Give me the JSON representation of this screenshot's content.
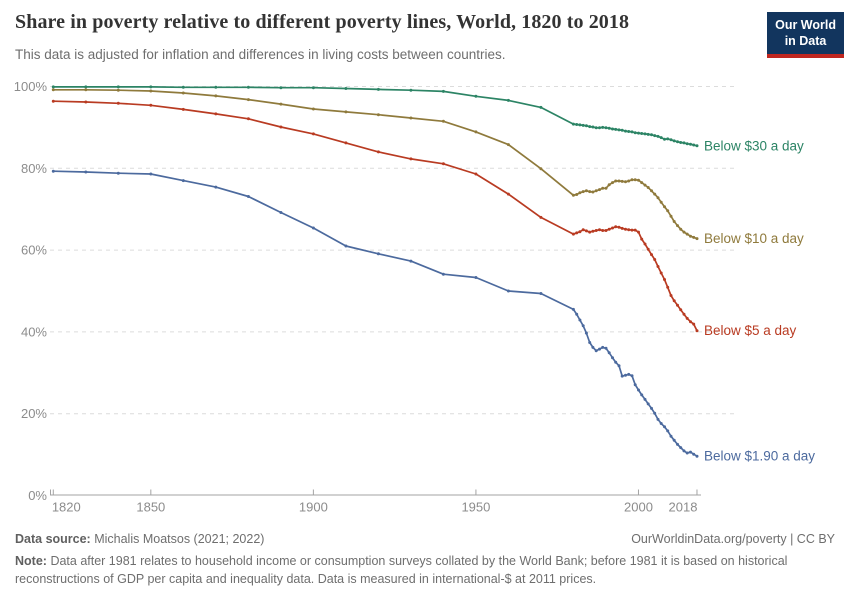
{
  "logo": {
    "line1": "Our World",
    "line2": "in Data",
    "bg_color": "#12355E",
    "accent_color": "#C0261F"
  },
  "chart_data": {
    "type": "line",
    "title": "Share in poverty relative to different poverty lines, World, 1820 to 2018",
    "subtitle": "This data is adjusted for inflation and differences in living costs between countries.",
    "xlabel": "",
    "ylabel": "",
    "xlim": [
      1820,
      2018
    ],
    "ylim": [
      0,
      100
    ],
    "x_ticks": [
      1820,
      1850,
      1900,
      1950,
      2000,
      2018
    ],
    "y_ticks": [
      0,
      20,
      40,
      60,
      80,
      100
    ],
    "y_tick_suffix": "%",
    "grid": true,
    "legend_position": "end-of-line-labels",
    "axis_color": "#a3a3a3",
    "grid_color": "#dcdcdc",
    "tick_label_color": "#8c8c8c",
    "series": [
      {
        "id": "below-30-a-day",
        "label": "Below $30 a day",
        "color": "#2C8465",
        "points": [
          [
            1820,
            99.9
          ],
          [
            1830,
            99.9
          ],
          [
            1840,
            99.9
          ],
          [
            1850,
            99.9
          ],
          [
            1860,
            99.8
          ],
          [
            1870,
            99.8
          ],
          [
            1880,
            99.8
          ],
          [
            1890,
            99.7
          ],
          [
            1900,
            99.7
          ],
          [
            1910,
            99.5
          ],
          [
            1920,
            99.3
          ],
          [
            1930,
            99.1
          ],
          [
            1940,
            98.8
          ],
          [
            1950,
            97.6
          ],
          [
            1960,
            96.6
          ],
          [
            1970,
            94.9
          ],
          [
            1980,
            90.8
          ],
          [
            1981,
            90.7
          ],
          [
            1982,
            90.6
          ],
          [
            1983,
            90.5
          ],
          [
            1984,
            90.4
          ],
          [
            1985,
            90.2
          ],
          [
            1986,
            90.1
          ],
          [
            1987,
            89.9
          ],
          [
            1988,
            89.9
          ],
          [
            1989,
            90.0
          ],
          [
            1990,
            89.9
          ],
          [
            1991,
            89.8
          ],
          [
            1992,
            89.6
          ],
          [
            1993,
            89.5
          ],
          [
            1994,
            89.4
          ],
          [
            1995,
            89.3
          ],
          [
            1996,
            89.1
          ],
          [
            1997,
            89.0
          ],
          [
            1998,
            88.9
          ],
          [
            1999,
            88.7
          ],
          [
            2000,
            88.6
          ],
          [
            2001,
            88.5
          ],
          [
            2002,
            88.4
          ],
          [
            2003,
            88.3
          ],
          [
            2004,
            88.2
          ],
          [
            2005,
            88.0
          ],
          [
            2006,
            87.8
          ],
          [
            2007,
            87.5
          ],
          [
            2008,
            87.1
          ],
          [
            2009,
            87.2
          ],
          [
            2010,
            87.0
          ],
          [
            2011,
            86.7
          ],
          [
            2012,
            86.5
          ],
          [
            2013,
            86.3
          ],
          [
            2014,
            86.2
          ],
          [
            2015,
            86.0
          ],
          [
            2016,
            85.9
          ],
          [
            2017,
            85.7
          ],
          [
            2018,
            85.5
          ]
        ]
      },
      {
        "id": "below-10-a-day",
        "label": "Below $10 a day",
        "color": "#8F7A3C",
        "points": [
          [
            1820,
            99.2
          ],
          [
            1830,
            99.2
          ],
          [
            1840,
            99.1
          ],
          [
            1850,
            98.9
          ],
          [
            1860,
            98.4
          ],
          [
            1870,
            97.7
          ],
          [
            1880,
            96.8
          ],
          [
            1890,
            95.7
          ],
          [
            1900,
            94.5
          ],
          [
            1910,
            93.8
          ],
          [
            1920,
            93.1
          ],
          [
            1930,
            92.3
          ],
          [
            1940,
            91.5
          ],
          [
            1950,
            88.9
          ],
          [
            1960,
            85.8
          ],
          [
            1970,
            79.9
          ],
          [
            1980,
            73.4
          ],
          [
            1981,
            73.6
          ],
          [
            1982,
            74.0
          ],
          [
            1983,
            74.3
          ],
          [
            1984,
            74.5
          ],
          [
            1985,
            74.3
          ],
          [
            1986,
            74.2
          ],
          [
            1987,
            74.5
          ],
          [
            1988,
            74.8
          ],
          [
            1989,
            75.1
          ],
          [
            1990,
            75.1
          ],
          [
            1991,
            76.0
          ],
          [
            1992,
            76.5
          ],
          [
            1993,
            76.9
          ],
          [
            1994,
            76.9
          ],
          [
            1995,
            76.8
          ],
          [
            1996,
            76.7
          ],
          [
            1997,
            76.9
          ],
          [
            1998,
            77.2
          ],
          [
            1999,
            77.2
          ],
          [
            2000,
            77.1
          ],
          [
            2001,
            76.5
          ],
          [
            2002,
            75.9
          ],
          [
            2003,
            75.3
          ],
          [
            2004,
            74.5
          ],
          [
            2005,
            73.7
          ],
          [
            2006,
            72.8
          ],
          [
            2007,
            71.7
          ],
          [
            2008,
            70.6
          ],
          [
            2009,
            69.6
          ],
          [
            2010,
            68.3
          ],
          [
            2011,
            67.0
          ],
          [
            2012,
            66.0
          ],
          [
            2013,
            65.1
          ],
          [
            2014,
            64.4
          ],
          [
            2015,
            63.9
          ],
          [
            2016,
            63.4
          ],
          [
            2017,
            63.1
          ],
          [
            2018,
            62.8
          ]
        ]
      },
      {
        "id": "below-5-a-day",
        "label": "Below $5 a day",
        "color": "#B93B22",
        "points": [
          [
            1820,
            96.4
          ],
          [
            1830,
            96.2
          ],
          [
            1840,
            95.9
          ],
          [
            1850,
            95.4
          ],
          [
            1860,
            94.4
          ],
          [
            1870,
            93.3
          ],
          [
            1880,
            92.1
          ],
          [
            1890,
            90.1
          ],
          [
            1900,
            88.4
          ],
          [
            1910,
            86.2
          ],
          [
            1920,
            84.0
          ],
          [
            1930,
            82.3
          ],
          [
            1940,
            81.1
          ],
          [
            1950,
            78.6
          ],
          [
            1960,
            73.7
          ],
          [
            1970,
            68.0
          ],
          [
            1980,
            63.9
          ],
          [
            1981,
            64.2
          ],
          [
            1982,
            64.5
          ],
          [
            1983,
            65.0
          ],
          [
            1984,
            64.7
          ],
          [
            1985,
            64.4
          ],
          [
            1986,
            64.6
          ],
          [
            1987,
            64.8
          ],
          [
            1988,
            65.0
          ],
          [
            1989,
            64.8
          ],
          [
            1990,
            64.8
          ],
          [
            1991,
            65.1
          ],
          [
            1992,
            65.4
          ],
          [
            1993,
            65.7
          ],
          [
            1994,
            65.6
          ],
          [
            1995,
            65.3
          ],
          [
            1996,
            65.1
          ],
          [
            1997,
            65.0
          ],
          [
            1998,
            64.9
          ],
          [
            1999,
            64.9
          ],
          [
            2000,
            64.4
          ],
          [
            2001,
            62.7
          ],
          [
            2002,
            61.5
          ],
          [
            2003,
            60.2
          ],
          [
            2004,
            58.9
          ],
          [
            2005,
            57.7
          ],
          [
            2006,
            56.0
          ],
          [
            2007,
            54.4
          ],
          [
            2008,
            52.8
          ],
          [
            2009,
            50.9
          ],
          [
            2010,
            48.9
          ],
          [
            2011,
            47.6
          ],
          [
            2012,
            46.5
          ],
          [
            2013,
            45.4
          ],
          [
            2014,
            44.3
          ],
          [
            2015,
            43.3
          ],
          [
            2016,
            42.5
          ],
          [
            2017,
            41.9
          ],
          [
            2018,
            40.3
          ]
        ]
      },
      {
        "id": "below-1-90-a-day",
        "label": "Below $1.90 a day",
        "color": "#4C6A9E",
        "points": [
          [
            1820,
            79.3
          ],
          [
            1830,
            79.1
          ],
          [
            1840,
            78.8
          ],
          [
            1850,
            78.6
          ],
          [
            1860,
            77.0
          ],
          [
            1870,
            75.4
          ],
          [
            1880,
            73.1
          ],
          [
            1890,
            69.2
          ],
          [
            1900,
            65.4
          ],
          [
            1910,
            61.0
          ],
          [
            1920,
            59.1
          ],
          [
            1930,
            57.3
          ],
          [
            1940,
            54.1
          ],
          [
            1950,
            53.3
          ],
          [
            1960,
            50.0
          ],
          [
            1970,
            49.4
          ],
          [
            1980,
            45.5
          ],
          [
            1981,
            44.3
          ],
          [
            1982,
            42.9
          ],
          [
            1983,
            41.5
          ],
          [
            1984,
            39.7
          ],
          [
            1985,
            37.4
          ],
          [
            1986,
            36.2
          ],
          [
            1987,
            35.4
          ],
          [
            1988,
            35.8
          ],
          [
            1989,
            36.2
          ],
          [
            1990,
            36.0
          ],
          [
            1991,
            34.9
          ],
          [
            1992,
            33.7
          ],
          [
            1993,
            32.6
          ],
          [
            1994,
            31.7
          ],
          [
            1995,
            29.2
          ],
          [
            1996,
            29.4
          ],
          [
            1997,
            29.6
          ],
          [
            1998,
            29.3
          ],
          [
            1999,
            27.1
          ],
          [
            2000,
            25.8
          ],
          [
            2001,
            24.6
          ],
          [
            2002,
            23.5
          ],
          [
            2003,
            22.4
          ],
          [
            2004,
            21.3
          ],
          [
            2005,
            20.1
          ],
          [
            2006,
            18.6
          ],
          [
            2007,
            17.6
          ],
          [
            2008,
            16.8
          ],
          [
            2009,
            15.8
          ],
          [
            2010,
            14.5
          ],
          [
            2011,
            13.5
          ],
          [
            2012,
            12.5
          ],
          [
            2013,
            11.7
          ],
          [
            2014,
            10.9
          ],
          [
            2015,
            10.4
          ],
          [
            2016,
            10.6
          ],
          [
            2017,
            10.1
          ],
          [
            2018,
            9.6
          ]
        ]
      }
    ]
  },
  "footer": {
    "source_label": "Data source:",
    "source_value": "Michalis Moatsos (2021; 2022)",
    "credit": "OurWorldinData.org/poverty | CC BY",
    "note_label": "Note:",
    "note_value": "Data after 1981 relates to household income or consumption surveys collated by the World Bank; before 1981 it is based on historical reconstructions of GDP per capita and inequality data. Data is measured in international-$ at 2011 prices."
  }
}
